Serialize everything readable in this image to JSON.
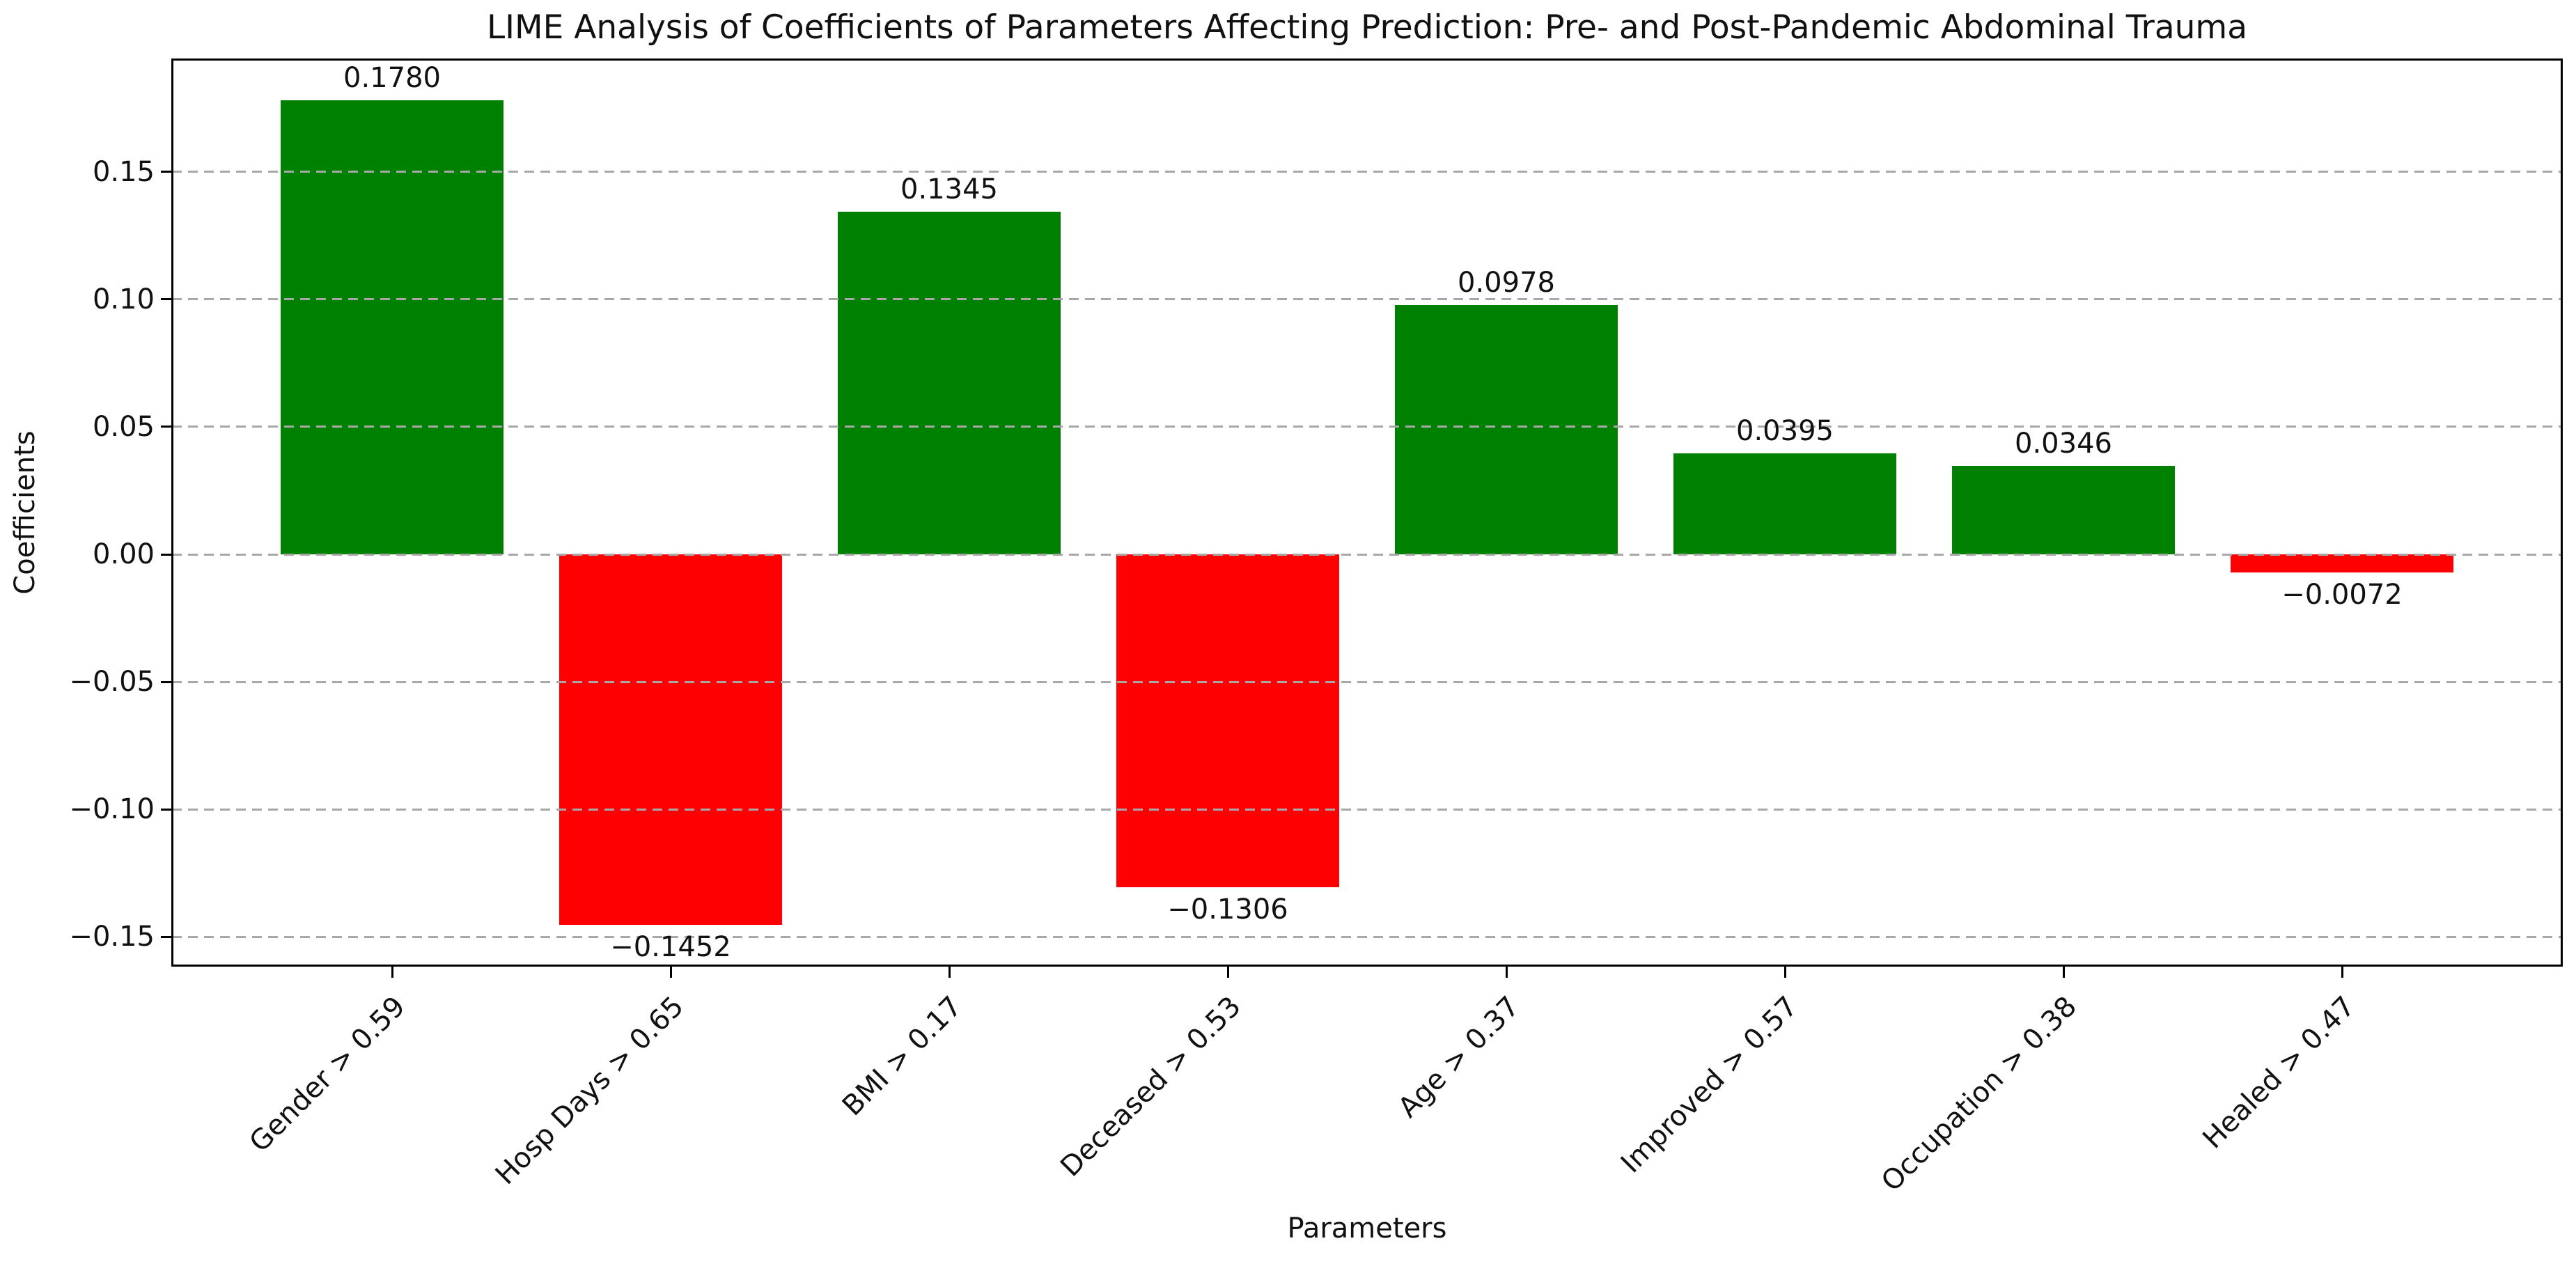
{
  "chart_data": {
    "type": "bar",
    "title": "LIME Analysis of Coefficients of Parameters Affecting Prediction: Pre- and Post-Pandemic Abdominal Trauma",
    "xlabel": "Parameters",
    "ylabel": "Coefficients",
    "categories": [
      "Gender > 0.59",
      "Hosp Days > 0.65",
      "BMI > 0.17",
      "Deceased > 0.53",
      "Age > 0.37",
      "Improved > 0.57",
      "Occupation > 0.38",
      "Healed > 0.47"
    ],
    "values": [
      0.178,
      -0.1452,
      0.1345,
      -0.1306,
      0.0978,
      0.0395,
      0.0346,
      -0.0072
    ],
    "bar_labels": [
      "0.1780",
      "−0.1452",
      "0.1345",
      "−0.1306",
      "0.0978",
      "0.0395",
      "0.0346",
      "−0.0072"
    ],
    "positive_color": "#008000",
    "negative_color": "#ff0000",
    "yticks": [
      {
        "value": 0.15,
        "label": "0.15"
      },
      {
        "value": 0.1,
        "label": "0.10"
      },
      {
        "value": 0.05,
        "label": "0.05"
      },
      {
        "value": 0.0,
        "label": "0.00"
      },
      {
        "value": -0.05,
        "label": "−0.05"
      },
      {
        "value": -0.1,
        "label": "−0.10"
      },
      {
        "value": -0.15,
        "label": "−0.15"
      }
    ],
    "ylim": [
      -0.1614,
      0.1942
    ],
    "xlim": [
      -0.79,
      7.79
    ],
    "bar_width": 0.8,
    "xtick_rotation_deg": 45,
    "grid": {
      "axis": "y",
      "style": "dashed",
      "color": "#a8a8a8"
    },
    "legend": null
  }
}
